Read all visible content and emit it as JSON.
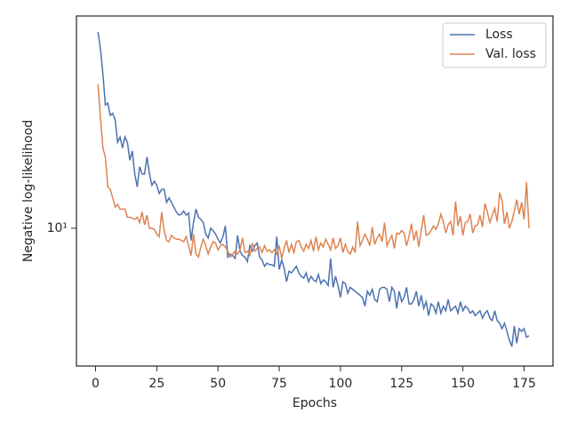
{
  "chart_data": {
    "type": "line",
    "x_label": "Epochs",
    "y_label": "Negative log-likelihood",
    "x": [
      1,
      2,
      3,
      4,
      5,
      6,
      7,
      8,
      9,
      10,
      11,
      12,
      13,
      14,
      15,
      16,
      17,
      18,
      19,
      20,
      21,
      22,
      23,
      24,
      25,
      26,
      27,
      28,
      29,
      30,
      31,
      32,
      33,
      34,
      35,
      36,
      37,
      38,
      39,
      40,
      41,
      42,
      43,
      44,
      45,
      46,
      47,
      48,
      49,
      50,
      51,
      52,
      53,
      54,
      55,
      56,
      57,
      58,
      59,
      60,
      61,
      62,
      63,
      64,
      65,
      66,
      67,
      68,
      69,
      70,
      71,
      72,
      73,
      74,
      75,
      76,
      77,
      78,
      79,
      80,
      81,
      82,
      83,
      84,
      85,
      86,
      87,
      88,
      89,
      90,
      91,
      92,
      93,
      94,
      95,
      96,
      97,
      98,
      99,
      100,
      101,
      102,
      103,
      104,
      105,
      106,
      107,
      108,
      109,
      110,
      111,
      112,
      113,
      114,
      115,
      116,
      117,
      118,
      119,
      120,
      121,
      122,
      123,
      124,
      125,
      126,
      127,
      128,
      129,
      130,
      131,
      132,
      133,
      134,
      135,
      136,
      137,
      138,
      139,
      140,
      141,
      142,
      143,
      144,
      145,
      146,
      147,
      148,
      149,
      150,
      151,
      152,
      153,
      154,
      155,
      156,
      157,
      158,
      159,
      160,
      161,
      162,
      163,
      164,
      165,
      166,
      167,
      168,
      169,
      170,
      171,
      172,
      173,
      174,
      175,
      176,
      177
    ],
    "series": [
      {
        "name": "Loss",
        "color": "#4c72b0",
        "values": [
          54.5,
          47,
          38,
          29,
          29.5,
          26.5,
          27,
          25.5,
          21,
          22,
          20,
          22,
          21,
          18,
          19.5,
          16,
          14.3,
          17,
          16,
          16,
          18.5,
          16,
          14.5,
          15,
          14.5,
          13.5,
          14,
          14,
          12.5,
          13,
          12.5,
          12,
          11.5,
          11.2,
          11.3,
          11.6,
          11.2,
          11.4,
          9,
          10.5,
          11.8,
          11,
          10.8,
          10.5,
          9.5,
          9.2,
          10,
          9.8,
          9.5,
          9.1,
          8.8,
          9.3,
          10.2,
          7.8,
          8,
          7.9,
          7.7,
          9.4,
          8.2,
          7.9,
          7.8,
          7.5,
          8.6,
          8.2,
          8.6,
          8.8,
          7.8,
          7.6,
          7.2,
          7.4,
          7.3,
          7.3,
          7.2,
          9.3,
          7.0,
          7.6,
          7.1,
          6.3,
          6.9,
          6.8,
          7.0,
          7.2,
          6.8,
          6.6,
          6.5,
          6.8,
          6.3,
          6.6,
          6.4,
          6.3,
          6.7,
          6.2,
          6.4,
          6.3,
          6.1,
          7.7,
          6.0,
          6.6,
          6.1,
          5.5,
          6.3,
          6.2,
          5.7,
          6.0,
          5.9,
          5.8,
          5.7,
          5.6,
          5.5,
          5.1,
          5.8,
          5.6,
          5.9,
          5.4,
          5.3,
          5.9,
          6.0,
          6.0,
          5.9,
          5.3,
          6.0,
          5.8,
          5.0,
          5.8,
          5.3,
          5.5,
          6.0,
          5.2,
          5.2,
          5.4,
          5.8,
          5.1,
          5.6,
          5.0,
          5.3,
          4.7,
          5.2,
          5.1,
          4.8,
          5.3,
          4.8,
          5.1,
          4.9,
          5.4,
          4.9,
          5.0,
          5.1,
          4.8,
          5.3,
          4.9,
          5.1,
          5.0,
          4.8,
          4.9,
          4.7,
          4.8,
          4.9,
          4.6,
          4.8,
          4.9,
          4.6,
          4.5,
          4.9,
          4.5,
          4.4,
          4.2,
          4.4,
          4.1,
          3.8,
          3.6,
          4.3,
          3.7,
          4.2,
          4.1,
          4.2,
          3.9,
          3.95
        ]
      },
      {
        "name": "Val. loss",
        "color": "#dd8452",
        "values": [
          34.7,
          26,
          20,
          18.5,
          14.3,
          14,
          13,
          12,
          12.3,
          11.8,
          11.8,
          11.8,
          11,
          11,
          10.9,
          10.8,
          11,
          10.5,
          11.5,
          10.3,
          11.2,
          10,
          10,
          9.9,
          9.5,
          9.3,
          11.5,
          9.8,
          9,
          8.9,
          9.4,
          9.2,
          9.1,
          9.1,
          9.0,
          8.9,
          9.3,
          8.6,
          7.9,
          9.5,
          8.0,
          7.8,
          8.5,
          9.1,
          8.6,
          8.0,
          8.5,
          8.9,
          8.8,
          8.3,
          8.6,
          8.7,
          8.5,
          8.2,
          7.8,
          8.0,
          8.2,
          8.0,
          8.3,
          9.2,
          8.1,
          8.2,
          7.9,
          8.8,
          8.2,
          8.4,
          8.5,
          8.1,
          8.6,
          8.2,
          8.3,
          8.1,
          8.3,
          8.0,
          8.6,
          7.7,
          8.4,
          9.0,
          8.1,
          8.7,
          8.1,
          8.9,
          9.0,
          8.5,
          8.2,
          8.7,
          8.4,
          9.0,
          8.2,
          9.3,
          8.3,
          8.8,
          8.5,
          9.1,
          8.7,
          8.3,
          9.2,
          8.4,
          8.6,
          9.2,
          8.1,
          8.7,
          8.2,
          8.0,
          8.5,
          8.1,
          10.6,
          8.6,
          9.0,
          9.5,
          9.1,
          8.6,
          10.1,
          8.7,
          9.2,
          9.5,
          8.9,
          10.5,
          8.6,
          9.0,
          9.4,
          8.4,
          9.6,
          9.5,
          9.8,
          9.6,
          8.6,
          9.3,
          10.4,
          9.0,
          9.8,
          8.5,
          9.8,
          11.2,
          9.4,
          9.5,
          9.8,
          10.2,
          9.9,
          10.4,
          11.3,
          10.6,
          9.6,
          10.3,
          10.6,
          9.4,
          12.6,
          10.2,
          11.1,
          9.4,
          10.5,
          10.6,
          11.3,
          9.6,
          10.2,
          10.3,
          11.2,
          10.1,
          12.4,
          11.5,
          10.5,
          11.2,
          11.9,
          10.6,
          13.6,
          12.7,
          10.4,
          11.5,
          10.0,
          10.6,
          11.6,
          12.8,
          11.3,
          12.5,
          10.8,
          14.9,
          10.0
        ]
      }
    ],
    "xlim": [
      -7.8,
      186.8
    ],
    "xticks": [
      0,
      25,
      50,
      75,
      100,
      125,
      150,
      175
    ],
    "ylim": [
      3.04,
      62.6
    ],
    "yscale": "log",
    "yticks": [
      {
        "value": 10,
        "label": "10¹"
      }
    ],
    "legend": "upper right"
  }
}
